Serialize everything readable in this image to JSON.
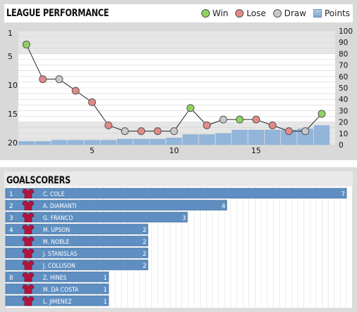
{
  "league_title": "LEAGUE PERFORMANCE",
  "scorers_title": "GOALSCORERS",
  "legend": [
    {
      "label": "Win",
      "color": "#8fd35f"
    },
    {
      "label": "Lose",
      "color": "#e28a86"
    },
    {
      "label": "Draw",
      "color": "#c9c9c9"
    },
    {
      "label": "Points",
      "color": "#8fb3da"
    }
  ],
  "chart_data": [
    {
      "type": "line",
      "x_ticks": [
        "5",
        "10",
        "15"
      ],
      "left_axis": {
        "ticks": [
          "1",
          "5",
          "10",
          "15",
          "20"
        ],
        "range": [
          1,
          20
        ],
        "inverted": true
      },
      "right_axis": {
        "ticks": [
          "100",
          "90",
          "80",
          "70",
          "60",
          "50",
          "40",
          "30",
          "20",
          "10",
          "0"
        ],
        "range": [
          0,
          100
        ]
      },
      "series": [
        {
          "name": "Position",
          "x": [
            1,
            2,
            3,
            4,
            5,
            6,
            7,
            8,
            9,
            10,
            11,
            12,
            13,
            14,
            15,
            16,
            17,
            18,
            19
          ],
          "values": [
            3,
            9,
            9,
            11,
            13,
            17,
            18,
            18,
            18,
            18,
            14,
            17,
            16,
            16,
            16,
            17,
            18,
            18,
            15
          ],
          "results": [
            "W",
            "L",
            "D",
            "L",
            "L",
            "L",
            "D",
            "L",
            "L",
            "D",
            "W",
            "L",
            "D",
            "W",
            "L",
            "L",
            "L",
            "D",
            "W"
          ]
        },
        {
          "name": "Points",
          "x": [
            1,
            2,
            3,
            4,
            5,
            6,
            7,
            8,
            9,
            10,
            11,
            12,
            13,
            14,
            15,
            16,
            17,
            18,
            19
          ],
          "values": [
            3,
            3,
            4,
            4,
            4,
            4,
            5,
            5,
            5,
            6,
            9,
            9,
            10,
            13,
            13,
            13,
            13,
            14,
            17
          ]
        }
      ],
      "highlight_bands": [
        [
          1,
          4
        ],
        [
          17,
          20
        ]
      ]
    },
    {
      "type": "bar",
      "orientation": "horizontal",
      "categories": [
        "C. COLE",
        "A. DIAMANTI",
        "G. FRANCO",
        "M. UPSON",
        "M. NOBLE",
        "J. STANISLAS",
        "J. COLLISON",
        "Z. HINES",
        "M. DA COSTA",
        "L. JIMENEZ"
      ],
      "ranks": [
        "1",
        "2",
        "3",
        "4",
        "",
        "",
        "",
        "8",
        "",
        ""
      ],
      "values": [
        7,
        4,
        3,
        2,
        2,
        2,
        2,
        1,
        1,
        1
      ],
      "xlim": [
        0,
        7
      ]
    }
  ]
}
